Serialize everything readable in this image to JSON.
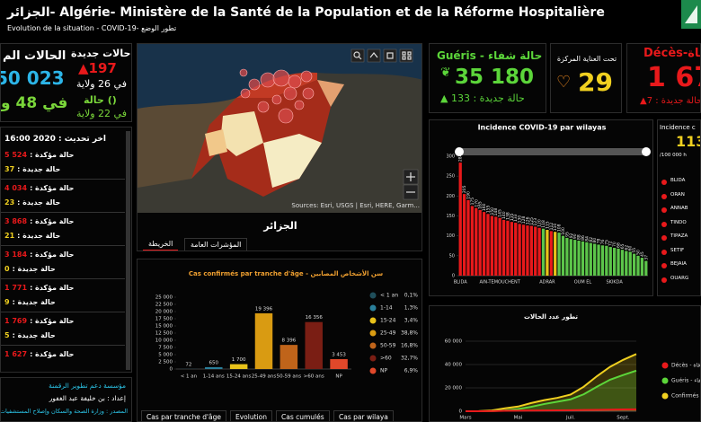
{
  "header": {
    "title": "الجزائر- Algérie- Ministère de la Santé de la Population et de la Réforme Hospitalière",
    "subtitle": "Evolution de la situation - COVID-19- تطور الوضع"
  },
  "summary": {
    "total_label": "الحالات الم",
    "total_value": "50 023",
    "total_wilayas": "في 48 و",
    "new_label": "حالات جديدة",
    "new_value": "▲197",
    "new_wilayas": "في 26 ولاية",
    "zero_value": "() حالة",
    "zero_wilayas": "في 22 ولاية"
  },
  "wilaya_list": {
    "updated": "اخر تحديث : 2020 16:00",
    "items": [
      {
        "confirmed_label": "حالة مؤكدة :",
        "confirmed": "5 524",
        "new_label": "حالة جديدة :",
        "new": "37"
      },
      {
        "confirmed_label": "حالة مؤكدة :",
        "confirmed": "4 034",
        "new_label": "حالة جديدة :",
        "new": "23"
      },
      {
        "confirmed_label": "حالة مؤكدة :",
        "confirmed": "3 868",
        "new_label": "حالة جديدة :",
        "new": "21"
      },
      {
        "confirmed_label": "حالة مؤكدة :",
        "confirmed": "3 184",
        "new_label": "حالة جديدة :",
        "new": "0"
      },
      {
        "confirmed_label": "حالة مؤكدة :",
        "confirmed": "1 771",
        "new_label": "حالة جديدة :",
        "new": "9"
      },
      {
        "confirmed_label": "حالة مؤكدة :",
        "confirmed": "1 769",
        "new_label": "حالة جديدة :",
        "new": "5"
      },
      {
        "confirmed_label": "حالة مؤكدة :",
        "confirmed": "1 627"
      }
    ]
  },
  "credits": {
    "org": "مؤسسة دعم تطوير الرقمنة",
    "author": "إعداد : بن خليفة عبد الغفور",
    "source": "المصدر : وزارة الصحة والسكان وإصلاح المستشفيات"
  },
  "map": {
    "attribution": "Sources: Esri, USGS | Esri, HERE, Garm...",
    "caption": "الجزائر",
    "tabs": [
      "الخريطة",
      "المؤشرات العامة"
    ]
  },
  "kpis": {
    "recovered": {
      "label": "Guéris - حالة شفاء",
      "value": "35 180",
      "new": "حالة جديدة : 133 ▲"
    },
    "icu": {
      "label": "تحت العناية المركزة",
      "value": "29"
    },
    "deaths": {
      "label": "Décès-وفاة",
      "value": "1 67",
      "new": "حالة جديدة : 7▲"
    }
  },
  "incidence_side": {
    "title": "Incidence c",
    "value": "113",
    "unit": "/100 000 h",
    "wilayas": [
      "BLIDA",
      "ORAN",
      "ANNAB",
      "TINDO",
      "TIPAZA",
      "SETIF",
      "BEJAIA",
      "OUARG"
    ]
  },
  "bottom_tabs": [
    "Cas par tranche d'âge",
    "Evolution",
    "Cas cumulés",
    "Cas par wilaya"
  ],
  "chart_data": [
    {
      "type": "bar",
      "title": "Cas confirmés par tranche d'âge - سن الأشخاص المصابين",
      "categories": [
        "< 1 an",
        "1-14 ans",
        "15-24 ans",
        "25-49 ans",
        "50-59 ans",
        ">60 ans",
        "NP"
      ],
      "values": [
        72,
        650,
        1700,
        19396,
        8396,
        16356,
        3453
      ],
      "value_labels": [
        "72",
        "650",
        "1 700",
        "19 396",
        "8 396",
        "16 356",
        "3 453"
      ],
      "colors": [
        "#1f4e5a",
        "#2a7f9a",
        "#e8c21a",
        "#d99b12",
        "#c0641a",
        "#7a1e14",
        "#e0482a"
      ],
      "ylim": [
        0,
        25000
      ],
      "yticks": [
        0,
        {
          "value": 2500,
          "label": "2 500"
        },
        {
          "value": 5000,
          "label": "5 000"
        },
        {
          "value": 7500,
          "label": "7 500"
        },
        {
          "value": 10000,
          "label": "10 000"
        },
        {
          "value": 12500,
          "label": "12 500"
        },
        {
          "value": 15000,
          "label": "15 000"
        },
        {
          "value": 17500,
          "label": "17 500"
        },
        {
          "value": 20000,
          "label": "20 000"
        },
        {
          "value": 22500,
          "label": "22 500"
        },
        {
          "value": 25000,
          "label": "25 000"
        }
      ],
      "grid": false,
      "legend": {
        "names": [
          "< 1 an",
          "1-14",
          "15-24",
          "25-49",
          "50-59",
          ">60",
          "NP"
        ],
        "shares": [
          "0,1%",
          "1,3%",
          "3,4%",
          "38,8%",
          "16,8%",
          "32,7%",
          "6,9%"
        ]
      }
    },
    {
      "type": "bar",
      "title": "Incidence COVID-19 par wilayas",
      "categories": [
        "BLIDA",
        null,
        null,
        null,
        null,
        null,
        null,
        null,
        null,
        null,
        "AIN-TEMOUCHENT",
        null,
        null,
        null,
        null,
        null,
        null,
        null,
        null,
        null,
        null,
        null,
        "ADRAR",
        null,
        null,
        null,
        null,
        null,
        null,
        null,
        null,
        "OUM EL",
        null,
        null,
        null,
        null,
        null,
        null,
        null,
        "SKIKDA",
        null,
        null,
        null,
        null,
        null,
        null,
        null,
        null
      ],
      "values": [
        284,
        205,
        190,
        175,
        170,
        165,
        160,
        155,
        150,
        148,
        145,
        140,
        138,
        135,
        133,
        130,
        128,
        126,
        125,
        123,
        120,
        118,
        115,
        112,
        110,
        108,
        100,
        95,
        92,
        90,
        88,
        86,
        84,
        82,
        80,
        78,
        76,
        75,
        72,
        70,
        68,
        65,
        62,
        60,
        55,
        50,
        45,
        37
      ],
      "colors": [
        "#e8191b",
        "#e8191b",
        "#e8191b",
        "#e8191b",
        "#e8191b",
        "#e8191b",
        "#e8191b",
        "#e8191b",
        "#e8191b",
        "#e8191b",
        "#e8191b",
        "#e8191b",
        "#e8191b",
        "#e8191b",
        "#e8191b",
        "#e8191b",
        "#e8191b",
        "#e8191b",
        "#e8191b",
        "#e8191b",
        "#e8191b",
        "#5cc54a",
        "#e8c21a",
        "#e8191b",
        "#e8c21a",
        "#5cc54a",
        "#5cc54a",
        "#5cc54a",
        "#5cc54a",
        "#5cc54a",
        "#5cc54a",
        "#5cc54a",
        "#5cc54a",
        "#5cc54a",
        "#5cc54a",
        "#5cc54a",
        "#5cc54a",
        "#5cc54a",
        "#5cc54a",
        "#5cc54a",
        "#5cc54a",
        "#5cc54a",
        "#5cc54a",
        "#5cc54a",
        "#5cc54a",
        "#5cc54a",
        "#5cc54a",
        "#5cc54a"
      ],
      "ylim": [
        0,
        300
      ],
      "yticks": [
        0,
        50,
        100,
        150,
        200,
        250,
        300
      ],
      "grid": false,
      "show_values": true
    },
    {
      "type": "line",
      "title": "تطور عدد الحالات",
      "categories": [
        "Mars",
        null,
        null,
        null,
        "Mai",
        null,
        null,
        null,
        "Juil.",
        null,
        null,
        null,
        "Sept.",
        null
      ],
      "series": [
        {
          "name": "Décès - وفاة",
          "color": "#e8191b",
          "values": [
            0,
            4,
            80,
            400,
            450,
            550,
            650,
            750,
            900,
            1050,
            1200,
            1350,
            1500,
            1650
          ]
        },
        {
          "name": "Guéris - حالة شفاء",
          "color": "#5cd63a",
          "values": [
            0,
            0,
            50,
            700,
            1800,
            3800,
            6200,
            8200,
            10200,
            14500,
            21000,
            27000,
            31000,
            34800
          ]
        },
        {
          "name": "Confirmés -",
          "color": "#f0d020",
          "values": [
            0,
            50,
            700,
            2500,
            4000,
            7000,
            9500,
            11500,
            14300,
            21000,
            30000,
            38000,
            44000,
            49000
          ]
        }
      ],
      "ylim": [
        0,
        60000
      ],
      "yticks": [
        0,
        {
          "value": 20000,
          "label": "20 000"
        },
        {
          "value": 40000,
          "label": "40 000"
        },
        {
          "value": 60000,
          "label": "60 000"
        }
      ],
      "grid": true
    }
  ]
}
